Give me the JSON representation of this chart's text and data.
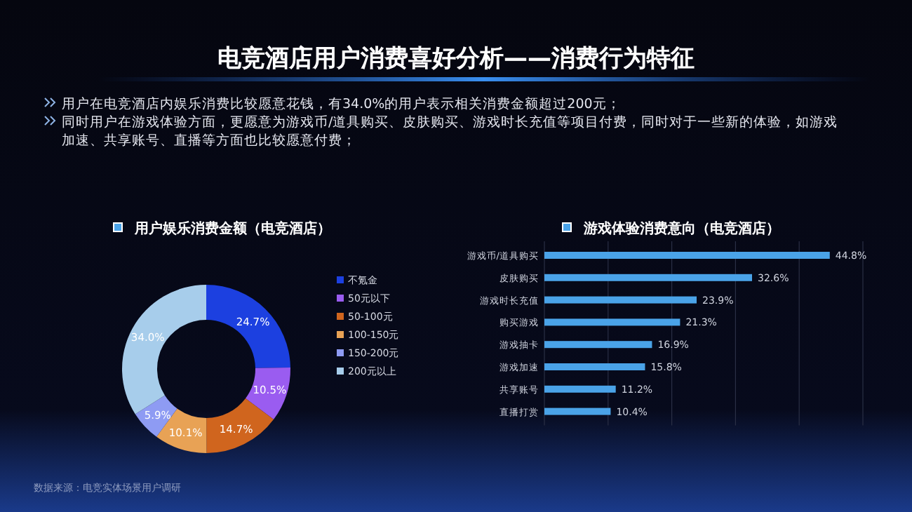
{
  "chart_data": [
    {
      "type": "other",
      "title": "电竞酒店用户消费喜好分析——消费行为特征",
      "annotations": [
        "用户在电竞酒店内娱乐消费比较愿意花钱，有34.0%的用户表示相关消费金额超过200元；",
        "同时用户在游戏体验方面，更愿意为游戏币/道具购买、皮肤购买、游戏时长充值等项目付费，同时对于一些新的体验，如游戏加速、共享账号、直播等方面也比较愿意付费；",
        "数据来源：电竞实体场景用户调研"
      ]
    },
    {
      "type": "donut",
      "title": "用户娱乐消费金额（电竞酒店）",
      "categories": [
        "不氪金",
        "50元以下",
        "50-100元",
        "100-150元",
        "150-200元",
        "200元以上"
      ],
      "values": [
        24.7,
        10.5,
        14.7,
        10.1,
        5.9,
        34.0
      ],
      "colors": [
        "#1c40e0",
        "#9a5cf0",
        "#d0651e",
        "#e8a255",
        "#8e9bf3",
        "#a7cdeb"
      ],
      "value_labels": [
        "24.7%",
        "10.5%",
        "14.7%",
        "10.1%",
        "5.9%",
        "34.0%"
      ],
      "legend": "right"
    },
    {
      "type": "bar",
      "orientation": "horizontal",
      "title": "游戏体验消费意向（电竞酒店）",
      "categories": [
        "游戏币/道具购买",
        "皮肤购买",
        "游戏时长充值",
        "购买游戏",
        "游戏抽卡",
        "游戏加速",
        "共享账号",
        "直播打赏"
      ],
      "values": [
        44.8,
        32.6,
        23.9,
        21.3,
        16.9,
        15.8,
        11.2,
        10.4
      ],
      "color": "#4aa3e8",
      "value_labels": [
        "44.8%",
        "32.6%",
        "23.9%",
        "21.3%",
        "16.9%",
        "15.8%",
        "11.2%",
        "10.4%"
      ],
      "xlim": [
        0,
        50
      ],
      "xticks": [
        {
          "value": 0,
          "label": null
        },
        {
          "value": 10,
          "label": null
        },
        {
          "value": 20,
          "label": null
        },
        {
          "value": 30,
          "label": null
        },
        {
          "value": 40,
          "label": null
        },
        {
          "value": 50,
          "label": null
        }
      ],
      "grid": "x",
      "tick_labels": "y"
    }
  ]
}
